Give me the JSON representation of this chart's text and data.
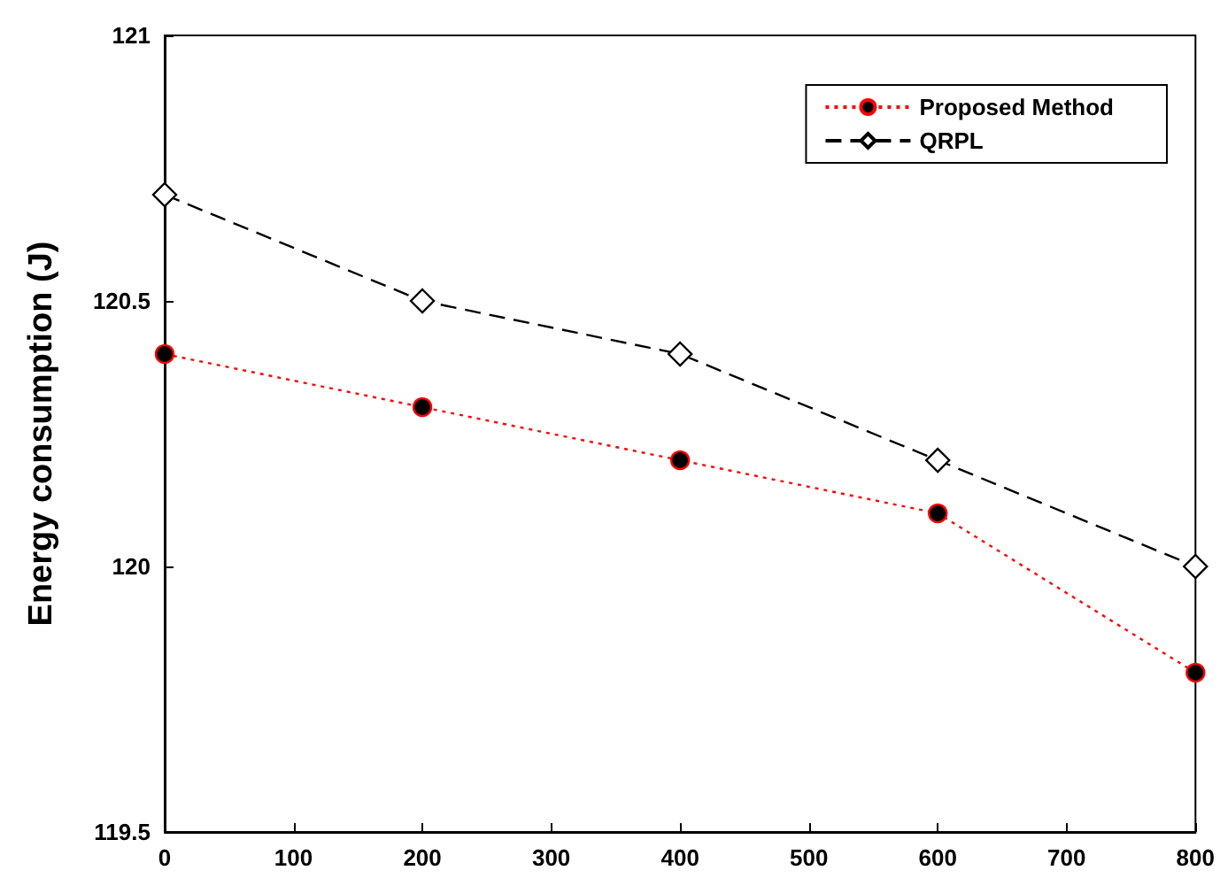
{
  "chart_data": {
    "type": "line",
    "ylabel": "Energy consumption (J)",
    "x": [
      0,
      200,
      400,
      600,
      800
    ],
    "series": [
      {
        "name": "Proposed Method",
        "color": "#ff0000",
        "values": [
          120.4,
          120.3,
          120.2,
          120.1,
          119.8
        ],
        "marker": "circle",
        "line_style": "dotted"
      },
      {
        "name": "QRPL",
        "color": "#000000",
        "values": [
          120.7,
          120.5,
          120.4,
          120.2,
          120.0
        ],
        "marker": "diamond",
        "line_style": "dashed"
      }
    ],
    "xlim": [
      0,
      800
    ],
    "xticks": [
      0,
      100,
      200,
      300,
      400,
      500,
      600,
      700,
      800
    ],
    "ylim": [
      119.5,
      121
    ],
    "yticks": [
      {
        "value": 119.5,
        "label": "119.5"
      },
      {
        "value": 120,
        "label": "120"
      },
      {
        "value": 120.5,
        "label": "120.5"
      },
      {
        "value": 121,
        "label": "121"
      }
    ],
    "grid": false,
    "legend": "top right"
  }
}
